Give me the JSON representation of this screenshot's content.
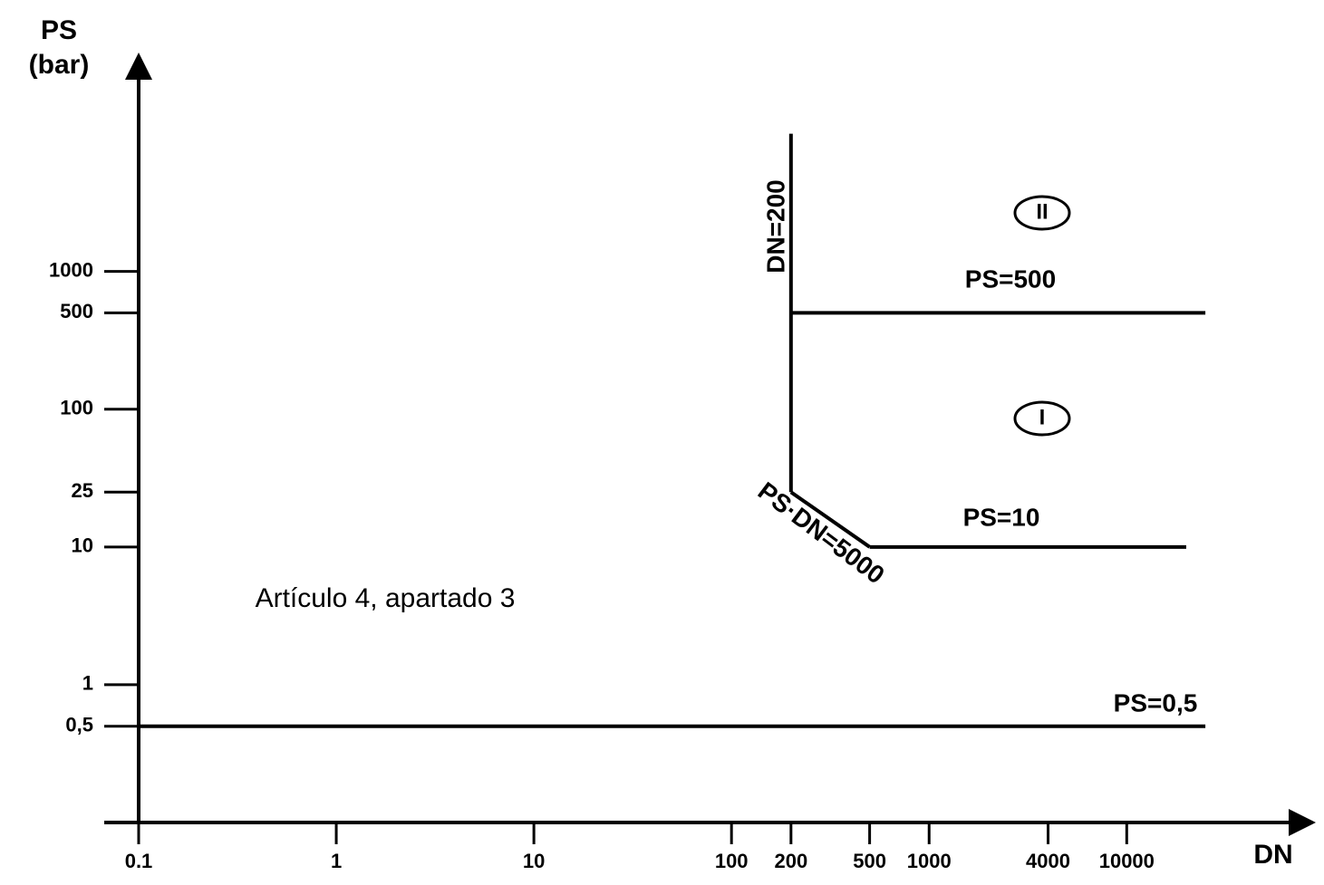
{
  "chart_data": {
    "type": "line",
    "ylabel": [
      "PS",
      "(bar)"
    ],
    "xlabel": "DN",
    "log_x": true,
    "log_y": true,
    "xlim": [
      0.1,
      60000
    ],
    "ylim": [
      0.1,
      30000
    ],
    "xticks": [
      0.1,
      1,
      10,
      100,
      200,
      500,
      1000,
      4000,
      10000
    ],
    "yticks": [
      {
        "value": 0.5,
        "label": "0,5"
      },
      1,
      10,
      25,
      100,
      500,
      1000
    ],
    "series": [
      {
        "name": "PS=0,5",
        "color": "#000000",
        "x": [
          0.1,
          25000
        ],
        "values": [
          0.5,
          0.5
        ]
      },
      {
        "name": "PS=500",
        "color": "#000000",
        "x": [
          200,
          25000
        ],
        "values": [
          500,
          500
        ]
      },
      {
        "name": "DN=200",
        "color": "#000000",
        "x": [
          200,
          200
        ],
        "values": [
          25,
          10000
        ]
      },
      {
        "name": "PS·DN=5000",
        "color": "#000000",
        "x": [
          200,
          500
        ],
        "values": [
          25,
          10
        ]
      },
      {
        "name": "PS=10",
        "color": "#000000",
        "x": [
          500,
          20000
        ],
        "values": [
          10,
          10
        ]
      }
    ],
    "annotations": [
      "II",
      "I",
      "Artículo 4, apartado 3"
    ]
  }
}
